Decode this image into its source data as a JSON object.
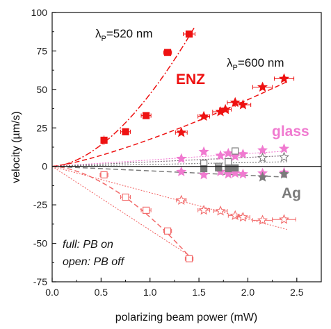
{
  "chart_data": {
    "type": "scatter",
    "xlabel": "polarizing beam power (mW)",
    "ylabel": "velocity (µm/s)",
    "xlim": [
      0,
      2.75
    ],
    "ylim": [
      -75,
      100
    ],
    "x_ticks": [
      "0.0",
      "0.5",
      "1.0",
      "1.5",
      "2.0",
      "2.5"
    ],
    "y_ticks": [
      "-75",
      "-50",
      "-25",
      "0",
      "25",
      "50",
      "75",
      "100"
    ],
    "grid": false,
    "colors": {
      "red": "#ee1111",
      "light_red": "#f26a6a",
      "pink": "#f07ad0",
      "gray": "#7b7b7b",
      "light_pink": "#f6b8df"
    },
    "annotations": {
      "lambda520": {
        "main": "λ",
        "sub": "P",
        "rest": "=520 nm"
      },
      "lambda600": {
        "main": "λ",
        "sub": "P",
        "rest": "=600 nm"
      },
      "enz": "ENZ",
      "glass": "glass",
      "ag": "Ag",
      "note_full": "full: PB on",
      "note_open": "open: PB off"
    },
    "series": [
      {
        "marker": "square-filled",
        "color": "#ee1111",
        "points": [
          [
            0.53,
            17
          ],
          [
            0.75,
            22.5
          ],
          [
            0.96,
            33
          ],
          [
            1.18,
            74
          ],
          [
            1.4,
            86
          ]
        ],
        "xerr": [
          0.03,
          0.05,
          0.05,
          0.04,
          0.06
        ],
        "yerr": [
          3,
          1.5,
          1.5,
          1.5,
          1.5
        ]
      },
      {
        "marker": "square-open",
        "color": "#f26a6a",
        "points": [
          [
            0.53,
            -5.5
          ],
          [
            0.75,
            -20
          ],
          [
            0.96,
            -28.5
          ],
          [
            1.18,
            -42
          ],
          [
            1.4,
            -60
          ]
        ],
        "xerr": [
          0.04,
          0.05,
          0.05,
          0.04,
          0.04
        ],
        "yerr": [
          1.5,
          1.5,
          1.5,
          1.5,
          1.5
        ]
      },
      {
        "marker": "star-filled",
        "color": "#ee1111",
        "points": [
          [
            1.32,
            22
          ],
          [
            1.55,
            32.5
          ],
          [
            1.72,
            35.5
          ],
          [
            1.77,
            37
          ],
          [
            1.87,
            41.5
          ],
          [
            1.95,
            40
          ],
          [
            2.15,
            51.5
          ],
          [
            2.37,
            57
          ]
        ],
        "xerr": [
          0.06,
          0.06,
          0.08,
          0.06,
          0.08,
          0.08,
          0.1,
          0.1
        ],
        "yerr": [
          1.5,
          1.5,
          1.5,
          1.5,
          1.5,
          1.5,
          1.5,
          1.5
        ]
      },
      {
        "marker": "star-open",
        "color": "#f26a6a",
        "points": [
          [
            1.32,
            -22
          ],
          [
            1.55,
            -28.5
          ],
          [
            1.72,
            -29
          ],
          [
            1.87,
            -32
          ],
          [
            1.95,
            -33
          ],
          [
            2.15,
            -35
          ],
          [
            2.37,
            -34.5
          ]
        ],
        "xerr": [
          0.05,
          0.06,
          0.07,
          0.07,
          0.07,
          0.1,
          0.12
        ],
        "yerr": [
          1.5,
          1.5,
          1.5,
          1.5,
          1.5,
          1.5,
          1.5
        ]
      },
      {
        "marker": "star-filled",
        "color": "#f07ad0",
        "points": [
          [
            1.32,
            5
          ],
          [
            1.55,
            9.5
          ],
          [
            1.72,
            7
          ],
          [
            1.8,
            8.5
          ],
          [
            1.87,
            6.5
          ],
          [
            1.95,
            8
          ],
          [
            2.15,
            10.5
          ],
          [
            2.37,
            11.5
          ]
        ],
        "xerr": [
          0,
          0,
          0,
          0,
          0,
          0,
          0,
          0
        ],
        "yerr": [
          0,
          0,
          0,
          0,
          0,
          0,
          0,
          0
        ]
      },
      {
        "marker": "star-filled",
        "color": "#f07ad0",
        "points": [
          [
            1.32,
            -3.5
          ],
          [
            1.55,
            -5.5
          ],
          [
            1.72,
            -3.5
          ],
          [
            1.8,
            -5
          ],
          [
            1.87,
            -4.5
          ],
          [
            1.95,
            -5
          ],
          [
            2.15,
            -4.5
          ],
          [
            2.37,
            -4
          ]
        ],
        "xerr": [
          0,
          0,
          0,
          0,
          0,
          0,
          0,
          0
        ],
        "yerr": [
          0,
          0,
          0,
          0,
          0,
          0,
          0,
          0
        ]
      },
      {
        "marker": "square-open",
        "color": "#7b7b7b",
        "points": [
          [
            1.55,
            2
          ],
          [
            1.7,
            0
          ],
          [
            1.8,
            3
          ],
          [
            1.87,
            10
          ]
        ],
        "xerr": [
          0,
          0,
          0,
          0
        ],
        "yerr": [
          0,
          0,
          0,
          0
        ]
      },
      {
        "marker": "square-filled",
        "color": "#7b7b7b",
        "points": [
          [
            1.55,
            -1.5
          ],
          [
            1.7,
            -1
          ],
          [
            1.8,
            -1.5
          ],
          [
            1.87,
            -1
          ]
        ],
        "xerr": [
          0,
          0,
          0,
          0
        ],
        "yerr": [
          0,
          0,
          0,
          0
        ]
      },
      {
        "marker": "star-open",
        "color": "#7b7b7b",
        "points": [
          [
            2.15,
            5.5
          ],
          [
            2.37,
            6
          ]
        ],
        "xerr": [
          0,
          0
        ],
        "yerr": [
          0,
          0
        ]
      },
      {
        "marker": "star-filled",
        "color": "#7b7b7b",
        "points": [
          [
            2.15,
            -7
          ],
          [
            2.37,
            -5
          ]
        ],
        "xerr": [
          0,
          0
        ],
        "yerr": [
          0,
          0
        ]
      }
    ],
    "fit_lines": [
      {
        "style": "dashdot",
        "color": "#ee1111",
        "x": [
          0,
          1.45
        ],
        "y": [
          0,
          90
        ],
        "curve": 1.75
      },
      {
        "style": "dash",
        "color": "#ee1111",
        "x": [
          0,
          2.4
        ],
        "y": [
          0,
          55
        ],
        "curve": 1.3
      },
      {
        "style": "dot",
        "color": "#f26a6a",
        "x": [
          0,
          2.4
        ],
        "y": [
          0,
          -41
        ],
        "curve": 1.0
      },
      {
        "style": "dot",
        "color": "#f26a6a",
        "x": [
          0,
          1.45
        ],
        "y": [
          0,
          -60
        ],
        "curve": 1.0
      },
      {
        "style": "dash",
        "color": "#f26a6a",
        "x": [
          0,
          1.45
        ],
        "y": [
          0,
          -62
        ],
        "curve": 1.7
      },
      {
        "style": "dot",
        "color": "#f07ad0",
        "x": [
          0,
          2.4
        ],
        "y": [
          0,
          10
        ],
        "curve": 1.0
      },
      {
        "style": "dot",
        "color": "#f07ad0",
        "x": [
          0,
          2.4
        ],
        "y": [
          0,
          7
        ],
        "curve": 1.0
      },
      {
        "style": "dash",
        "color": "#7b7b7b",
        "x": [
          0,
          2.4
        ],
        "y": [
          0,
          -7
        ],
        "curve": 1.0
      },
      {
        "style": "dot",
        "color": "#7b7b7b",
        "x": [
          0,
          2.4
        ],
        "y": [
          0,
          7
        ],
        "curve": 1.0
      },
      {
        "style": "dot",
        "color": "#7b7b7b",
        "x": [
          0,
          2.4
        ],
        "y": [
          0,
          3
        ],
        "curve": 1.0
      }
    ]
  }
}
